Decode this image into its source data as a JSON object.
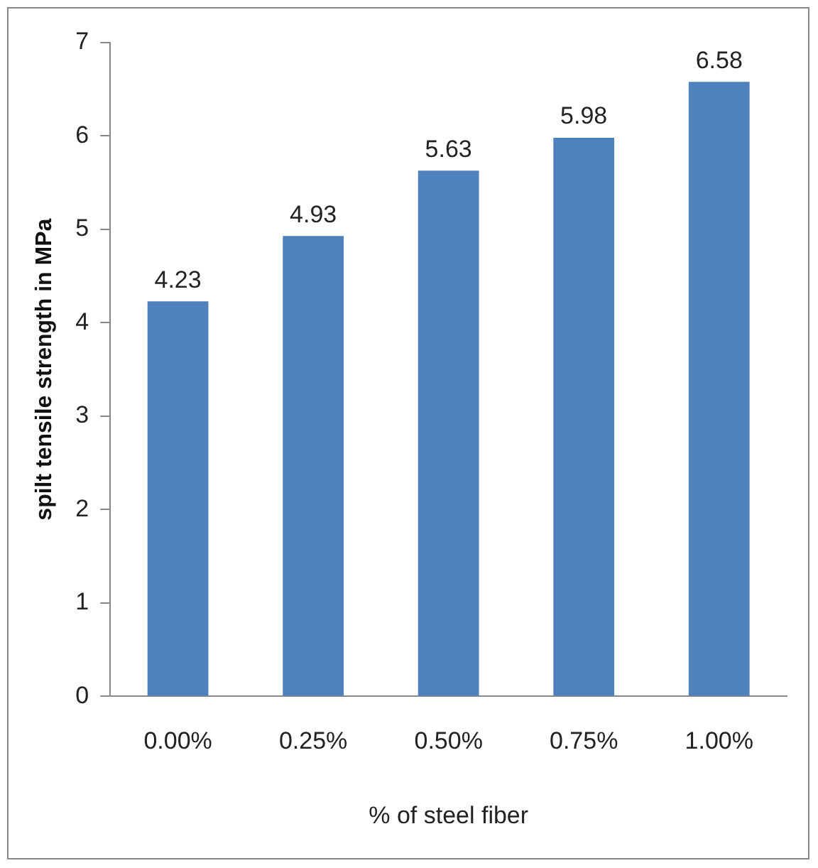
{
  "chart_data": {
    "type": "bar",
    "xlabel": "% of steel fiber",
    "ylabel": "spilt tensile strength in MPa",
    "categories": [
      "0.00%",
      "0.25%",
      "0.50%",
      "0.75%",
      "1.00%"
    ],
    "values": [
      4.23,
      4.93,
      5.63,
      5.98,
      6.58
    ],
    "color": "#4f81bd",
    "ylim": [
      0,
      7
    ],
    "yticks": [
      0,
      1,
      2,
      3,
      4,
      5,
      6,
      7
    ],
    "grid": false,
    "legend": false,
    "data_labels": true
  }
}
